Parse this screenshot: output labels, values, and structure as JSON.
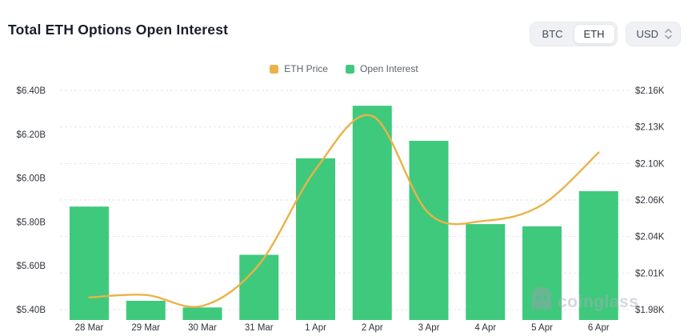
{
  "header": {
    "title": "Total ETH Options Open Interest"
  },
  "controls": {
    "coin_toggle": {
      "options": [
        "BTC",
        "ETH"
      ],
      "selected": "ETH"
    },
    "currency_select": {
      "value": "USD"
    }
  },
  "legend": [
    {
      "label": "ETH Price",
      "color": "#EAB248"
    },
    {
      "label": "Open Interest",
      "color": "#3FC97D"
    }
  ],
  "watermark": {
    "text": "coinglass"
  },
  "chart_data": {
    "type": "bar",
    "title": "Total ETH Options Open Interest",
    "categories": [
      "28 Mar",
      "29 Mar",
      "30 Mar",
      "31 Mar",
      "1 Apr",
      "2 Apr",
      "3 Apr",
      "4 Apr",
      "5 Apr",
      "6 Apr"
    ],
    "series": [
      {
        "name": "ETH Price",
        "type": "line",
        "axis": "right",
        "color": "#EAB248",
        "values": [
          1990,
          1992,
          1983,
          2017,
          2095,
          2139,
          2059,
          2053,
          2066,
          2109
        ]
      },
      {
        "name": "Open Interest",
        "type": "bar",
        "axis": "left",
        "color": "#3FC97D",
        "values": [
          5.87,
          5.44,
          5.41,
          5.65,
          6.09,
          6.33,
          6.17,
          5.79,
          5.78,
          5.94
        ]
      }
    ],
    "left_axis": {
      "labels": [
        "$6.40B",
        "$6.20B",
        "$6.00B",
        "$5.80B",
        "$5.60B",
        "$5.40B"
      ],
      "tick_max": 6.4,
      "tick_min": 5.4
    },
    "right_axis": {
      "labels": [
        "$2.16K",
        "$2.13K",
        "$2.10K",
        "$2.06K",
        "$2.04K",
        "$2.01K",
        "$1.98K"
      ],
      "tick_max": 2.16,
      "tick_min": 1.98
    },
    "grid": "dashed-horizontal",
    "grid_color": "#e4e6ea",
    "axis_text_color": "#2f333c",
    "legend_position": "top-center"
  }
}
